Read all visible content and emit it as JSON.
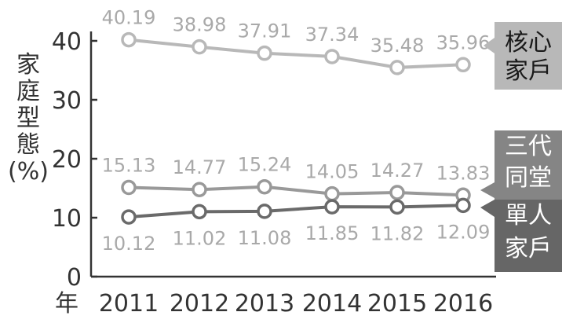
{
  "chart_data": {
    "type": "line",
    "x": [
      "2011",
      "2012",
      "2013",
      "2014",
      "2015",
      "2016"
    ],
    "xlabel": "年",
    "ylabel": "家庭型態(%)",
    "ylabel_chars": [
      "家",
      "庭",
      "型",
      "態"
    ],
    "ylabel_unit": "(%)",
    "ylim": [
      0,
      40
    ],
    "yticks": [
      "0",
      "10",
      "20",
      "30",
      "40"
    ],
    "grid": false,
    "legend_placement": "right",
    "series": [
      {
        "name": "核心家戶",
        "name_lines": [
          "核心",
          "家戶"
        ],
        "values": [
          40.19,
          38.98,
          37.91,
          37.34,
          35.48,
          35.96
        ],
        "labels": [
          "40.19",
          "38.98",
          "37.91",
          "37.34",
          "35.48",
          "35.96"
        ],
        "color": "#b8b8b8",
        "label_bg": "#b8b8b8"
      },
      {
        "name": "三代同堂",
        "name_lines": [
          "三代",
          "同堂"
        ],
        "values": [
          15.13,
          14.77,
          15.24,
          14.05,
          14.27,
          13.83
        ],
        "labels": [
          "15.13",
          "14.77",
          "15.24",
          "14.05",
          "14.27",
          "13.83"
        ],
        "color": "#999999",
        "label_bg": "#858585"
      },
      {
        "name": "單人家戶",
        "name_lines": [
          "單人",
          "家戶"
        ],
        "values": [
          10.12,
          11.02,
          11.08,
          11.85,
          11.82,
          12.09
        ],
        "labels": [
          "10.12",
          "11.02",
          "11.08",
          "11.85",
          "11.82",
          "12.09"
        ],
        "color": "#6a6a6a",
        "label_bg": "#666666"
      }
    ]
  }
}
